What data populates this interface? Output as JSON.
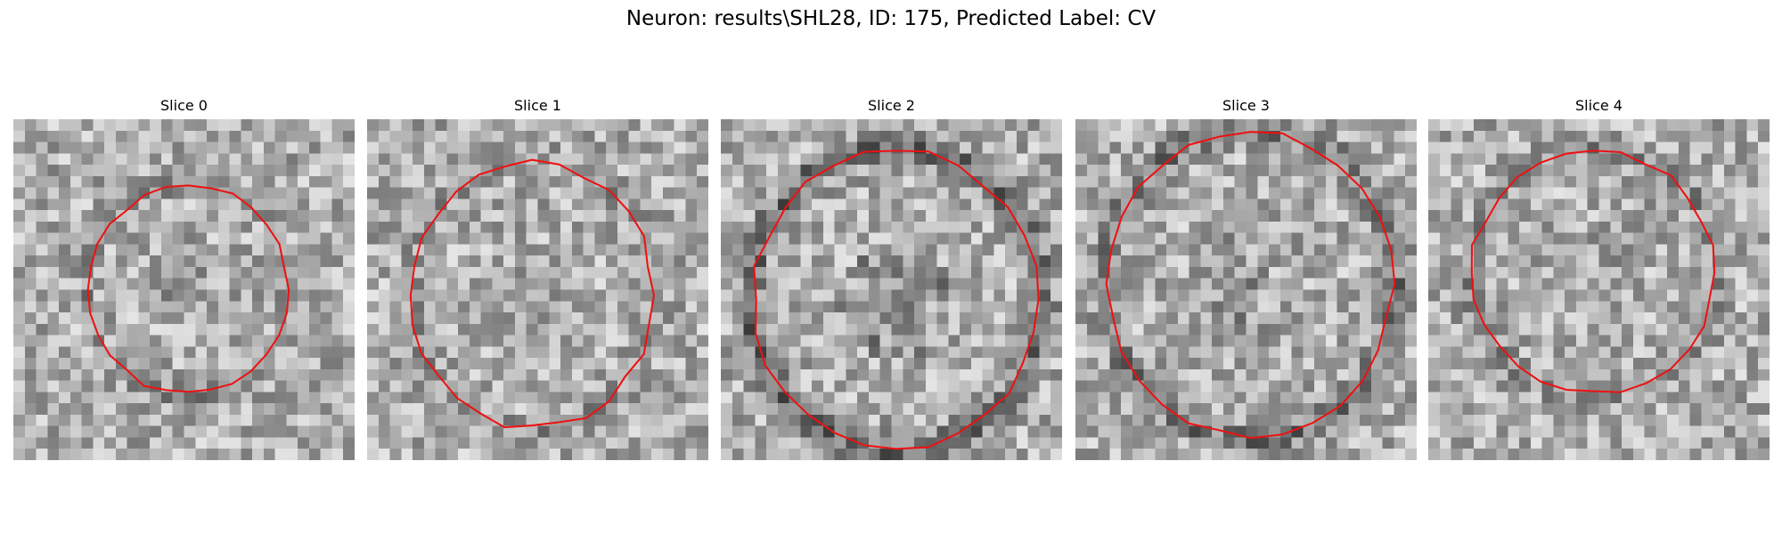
{
  "title": "Neuron: results\\SHL28, ID: 175, Predicted Label: CV",
  "panels": [
    {
      "title": "Slice 0"
    },
    {
      "title": "Slice 1"
    },
    {
      "title": "Slice 2"
    },
    {
      "title": "Slice 3"
    },
    {
      "title": "Slice 4"
    }
  ]
}
